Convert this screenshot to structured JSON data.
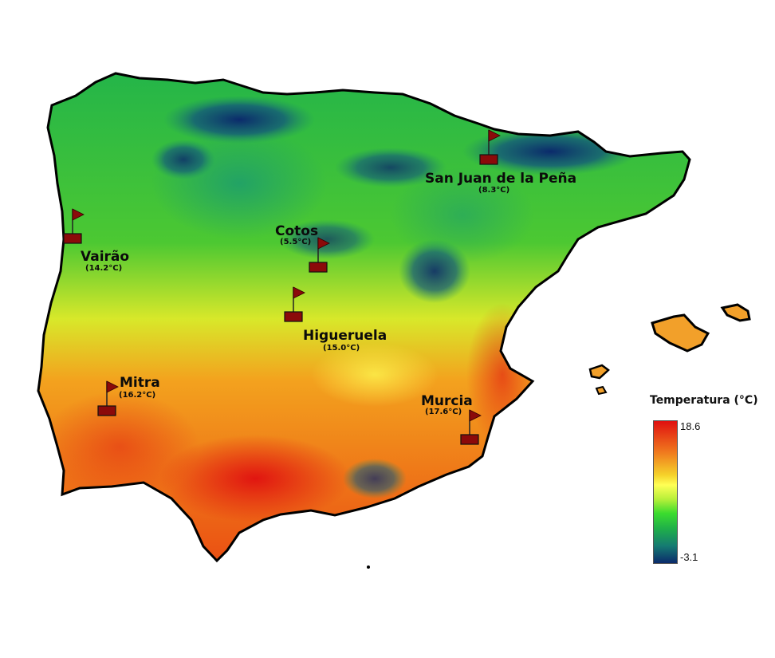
{
  "map": {
    "stations": [
      {
        "id": "vairao",
        "name": "Vairão",
        "temp": "(14.2°C)"
      },
      {
        "id": "cotos",
        "name": "Cotos",
        "temp": "(5.5°C)"
      },
      {
        "id": "sanjuan",
        "name": "San Juan de la Peña",
        "temp": "(8.3°C)"
      },
      {
        "id": "higueruela",
        "name": "Higueruela",
        "temp": "(15.0°C)"
      },
      {
        "id": "mitra",
        "name": "Mitra",
        "temp": "(16.2°C)"
      },
      {
        "id": "murcia",
        "name": "Murcia",
        "temp": "(17.6°C)"
      }
    ]
  },
  "legend": {
    "title": "Temperatura (°C)",
    "max": "18.6",
    "min": "-3.1",
    "colors": [
      "#e01010",
      "#f07a1e",
      "#ffff55",
      "#3bdc2e",
      "#157a72",
      "#0b2a6b"
    ]
  }
}
